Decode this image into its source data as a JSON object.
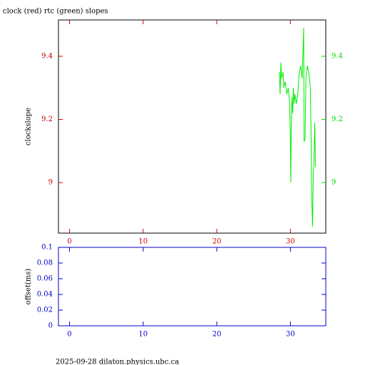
{
  "chart_data": [
    {
      "type": "line",
      "title": "clock (red) rtc (green) slopes",
      "ylabel": "clockslope",
      "xlim": [
        -1.5,
        34.8
      ],
      "xticks": [
        0,
        10,
        20,
        30
      ],
      "ylim": [
        8.84,
        9.515
      ],
      "yticks": [
        9,
        9.2,
        9.4
      ],
      "y2lim": [
        8.84,
        9.515
      ],
      "y2ticks": [
        9,
        9.2,
        9.4
      ],
      "frame_color": "#000000",
      "xtick_color": "#cc0000",
      "ytick_color": "#cc0000",
      "y2tick_color": "#00dd00",
      "x": [
        28.5,
        28.6,
        28.7,
        28.8,
        29.0,
        29.1,
        29.3,
        29.5,
        29.7,
        29.9,
        30.0,
        30.05,
        30.1,
        30.2,
        30.3,
        30.4,
        30.5,
        30.6,
        30.8,
        31.0,
        31.2,
        31.4,
        31.6,
        31.8,
        31.85,
        32.0,
        32.1,
        32.3,
        32.5,
        32.7,
        32.8,
        32.9,
        33.0,
        33.1,
        33.2,
        33.3,
        33.4
      ],
      "series": [
        {
          "color": "#00ee00",
          "axis": "y2",
          "values": [
            9.35,
            9.28,
            9.38,
            9.33,
            9.35,
            9.3,
            9.32,
            9.28,
            9.3,
            9.25,
            9.12,
            9.0,
            9.15,
            9.27,
            9.22,
            9.3,
            9.25,
            9.28,
            9.25,
            9.28,
            9.35,
            9.37,
            9.33,
            9.49,
            9.13,
            9.14,
            9.33,
            9.37,
            9.35,
            9.3,
            9.16,
            8.95,
            8.86,
            9.02,
            9.07,
            9.19,
            9.05
          ]
        }
      ]
    },
    {
      "type": "line",
      "ylabel": "offset(ms)",
      "xlim": [
        -1.5,
        34.8
      ],
      "xticks": [
        0,
        10,
        20,
        30
      ],
      "ylim": [
        0,
        0.1
      ],
      "yticks": [
        0,
        0.02,
        0.04,
        0.06,
        0.08,
        0.1
      ],
      "frame_color": "#0000cc",
      "xtick_color": "#0000cc",
      "ytick_color": "#0000cc",
      "x": [],
      "series": []
    }
  ],
  "footer": "2025-09-28 dilaton.physics.ubc.ca"
}
